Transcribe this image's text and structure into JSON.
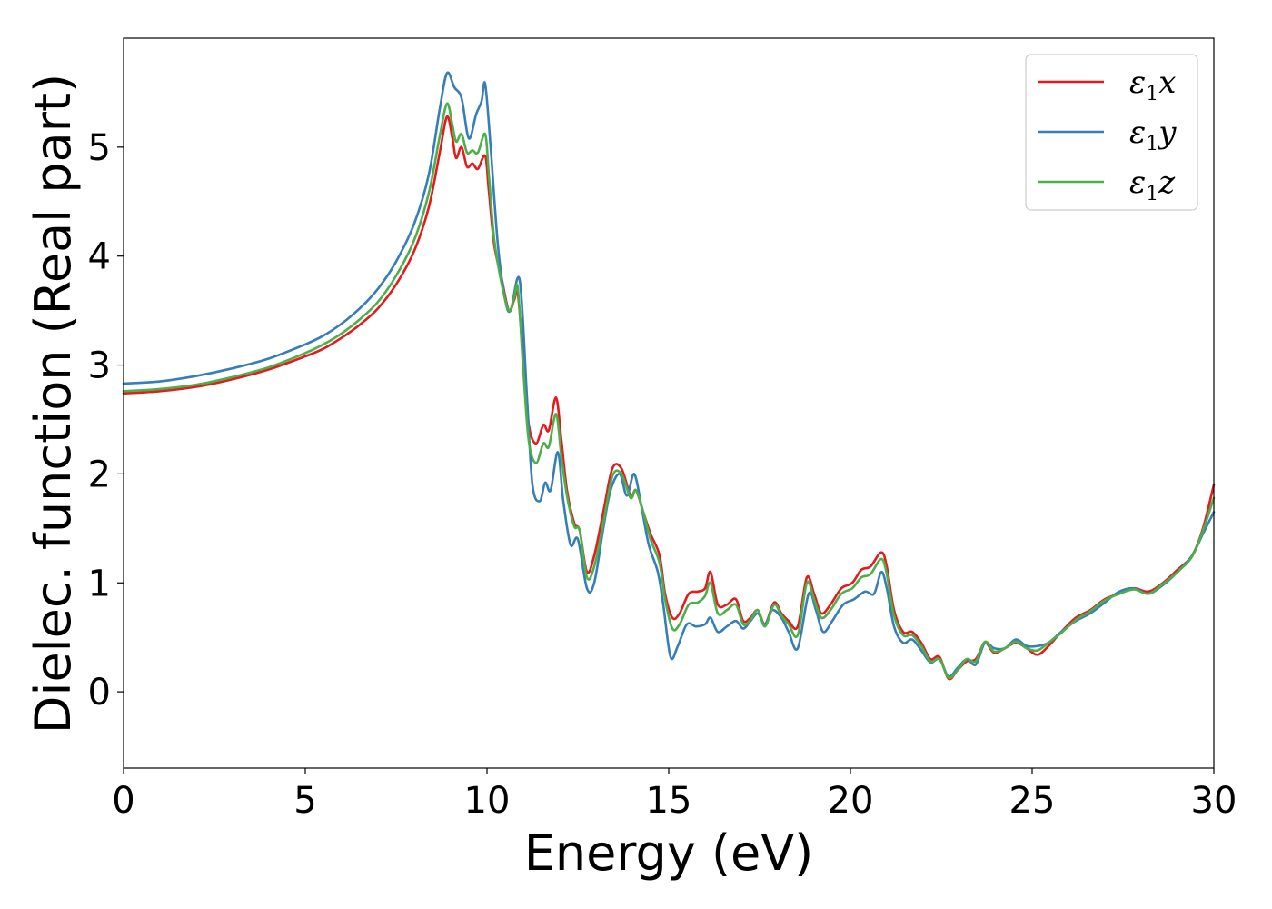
{
  "chart_data": {
    "type": "line",
    "xlabel": "Energy (eV)",
    "ylabel": "Dielec. function (Real part)",
    "xlim": [
      0,
      30
    ],
    "ylim": [
      -0.7,
      6.0
    ],
    "xticks": [
      0,
      5,
      10,
      15,
      20,
      25,
      30
    ],
    "xtick_labels": [
      "0",
      "5",
      "10",
      "15",
      "20",
      "25",
      "30"
    ],
    "yticks": [
      0,
      1,
      2,
      3,
      4,
      5
    ],
    "ytick_labels": [
      "0",
      "1",
      "2",
      "3",
      "4",
      "5"
    ],
    "grid": false,
    "legend_position": "top-right",
    "series": [
      {
        "name": "ε1x",
        "name_base": "ε",
        "name_sub": "1",
        "name_var": "x",
        "color": "#e41a1c",
        "points": [
          [
            0,
            2.74
          ],
          [
            1,
            2.76
          ],
          [
            2,
            2.8
          ],
          [
            3,
            2.87
          ],
          [
            4,
            2.96
          ],
          [
            5,
            3.08
          ],
          [
            5.5,
            3.15
          ],
          [
            6,
            3.25
          ],
          [
            6.5,
            3.37
          ],
          [
            7,
            3.52
          ],
          [
            7.5,
            3.74
          ],
          [
            8,
            4.05
          ],
          [
            8.4,
            4.45
          ],
          [
            8.7,
            4.95
          ],
          [
            8.9,
            5.28
          ],
          [
            9.05,
            5.08
          ],
          [
            9.15,
            4.9
          ],
          [
            9.3,
            5.0
          ],
          [
            9.45,
            4.82
          ],
          [
            9.6,
            4.85
          ],
          [
            9.75,
            4.8
          ],
          [
            9.95,
            4.92
          ],
          [
            10.05,
            4.6
          ],
          [
            10.2,
            4.1
          ],
          [
            10.4,
            3.8
          ],
          [
            10.6,
            3.5
          ],
          [
            10.75,
            3.6
          ],
          [
            10.85,
            3.65
          ],
          [
            11.0,
            3.05
          ],
          [
            11.15,
            2.45
          ],
          [
            11.35,
            2.28
          ],
          [
            11.55,
            2.45
          ],
          [
            11.7,
            2.4
          ],
          [
            11.9,
            2.7
          ],
          [
            12.05,
            2.3
          ],
          [
            12.2,
            1.85
          ],
          [
            12.4,
            1.55
          ],
          [
            12.55,
            1.48
          ],
          [
            12.75,
            1.1
          ],
          [
            12.95,
            1.25
          ],
          [
            13.2,
            1.65
          ],
          [
            13.45,
            2.05
          ],
          [
            13.7,
            2.05
          ],
          [
            13.95,
            1.8
          ],
          [
            14.1,
            1.85
          ],
          [
            14.3,
            1.65
          ],
          [
            14.5,
            1.45
          ],
          [
            14.75,
            1.25
          ],
          [
            14.9,
            0.9
          ],
          [
            15.1,
            0.68
          ],
          [
            15.3,
            0.72
          ],
          [
            15.55,
            0.9
          ],
          [
            15.8,
            0.92
          ],
          [
            16.0,
            0.95
          ],
          [
            16.15,
            1.1
          ],
          [
            16.35,
            0.8
          ],
          [
            16.6,
            0.8
          ],
          [
            16.85,
            0.85
          ],
          [
            17.05,
            0.65
          ],
          [
            17.25,
            0.68
          ],
          [
            17.45,
            0.75
          ],
          [
            17.65,
            0.62
          ],
          [
            17.9,
            0.82
          ],
          [
            18.1,
            0.72
          ],
          [
            18.3,
            0.65
          ],
          [
            18.55,
            0.6
          ],
          [
            18.8,
            1.05
          ],
          [
            19.0,
            0.9
          ],
          [
            19.2,
            0.72
          ],
          [
            19.45,
            0.8
          ],
          [
            19.75,
            0.95
          ],
          [
            20.05,
            1.0
          ],
          [
            20.3,
            1.12
          ],
          [
            20.55,
            1.15
          ],
          [
            20.85,
            1.28
          ],
          [
            21.0,
            1.15
          ],
          [
            21.2,
            0.75
          ],
          [
            21.45,
            0.55
          ],
          [
            21.7,
            0.55
          ],
          [
            21.95,
            0.45
          ],
          [
            22.2,
            0.3
          ],
          [
            22.45,
            0.32
          ],
          [
            22.7,
            0.12
          ],
          [
            22.95,
            0.2
          ],
          [
            23.2,
            0.28
          ],
          [
            23.45,
            0.3
          ],
          [
            23.7,
            0.45
          ],
          [
            23.95,
            0.36
          ],
          [
            24.25,
            0.4
          ],
          [
            24.55,
            0.45
          ],
          [
            24.85,
            0.4
          ],
          [
            25.15,
            0.34
          ],
          [
            25.45,
            0.42
          ],
          [
            25.8,
            0.55
          ],
          [
            26.2,
            0.68
          ],
          [
            26.6,
            0.75
          ],
          [
            27.0,
            0.85
          ],
          [
            27.4,
            0.9
          ],
          [
            27.8,
            0.95
          ],
          [
            28.2,
            0.92
          ],
          [
            28.6,
            1.0
          ],
          [
            29.0,
            1.12
          ],
          [
            29.4,
            1.25
          ],
          [
            29.7,
            1.5
          ],
          [
            30.0,
            1.9
          ]
        ]
      },
      {
        "name": "ε1y",
        "name_base": "ε",
        "name_sub": "1",
        "name_var": "y",
        "color": "#377eb8",
        "points": [
          [
            0,
            2.83
          ],
          [
            1,
            2.85
          ],
          [
            2,
            2.9
          ],
          [
            3,
            2.97
          ],
          [
            4,
            3.06
          ],
          [
            5,
            3.19
          ],
          [
            5.5,
            3.27
          ],
          [
            6,
            3.38
          ],
          [
            6.5,
            3.52
          ],
          [
            7,
            3.7
          ],
          [
            7.5,
            3.95
          ],
          [
            8,
            4.3
          ],
          [
            8.4,
            4.75
          ],
          [
            8.7,
            5.35
          ],
          [
            8.9,
            5.68
          ],
          [
            9.1,
            5.55
          ],
          [
            9.3,
            5.45
          ],
          [
            9.5,
            5.08
          ],
          [
            9.7,
            5.3
          ],
          [
            9.85,
            5.42
          ],
          [
            9.95,
            5.58
          ],
          [
            10.1,
            5.0
          ],
          [
            10.3,
            4.1
          ],
          [
            10.5,
            3.6
          ],
          [
            10.65,
            3.5
          ],
          [
            10.9,
            3.78
          ],
          [
            11.1,
            2.7
          ],
          [
            11.25,
            1.9
          ],
          [
            11.45,
            1.75
          ],
          [
            11.6,
            1.92
          ],
          [
            11.75,
            1.85
          ],
          [
            11.95,
            2.2
          ],
          [
            12.1,
            1.75
          ],
          [
            12.3,
            1.35
          ],
          [
            12.5,
            1.4
          ],
          [
            12.75,
            0.95
          ],
          [
            12.95,
            1.0
          ],
          [
            13.2,
            1.5
          ],
          [
            13.4,
            1.85
          ],
          [
            13.65,
            2.0
          ],
          [
            13.85,
            1.8
          ],
          [
            14.05,
            2.0
          ],
          [
            14.25,
            1.7
          ],
          [
            14.45,
            1.35
          ],
          [
            14.7,
            1.1
          ],
          [
            14.85,
            0.8
          ],
          [
            15.05,
            0.32
          ],
          [
            15.25,
            0.42
          ],
          [
            15.5,
            0.62
          ],
          [
            15.75,
            0.6
          ],
          [
            16.0,
            0.62
          ],
          [
            16.15,
            0.68
          ],
          [
            16.35,
            0.55
          ],
          [
            16.6,
            0.6
          ],
          [
            16.85,
            0.65
          ],
          [
            17.05,
            0.58
          ],
          [
            17.25,
            0.65
          ],
          [
            17.45,
            0.72
          ],
          [
            17.65,
            0.62
          ],
          [
            17.85,
            0.75
          ],
          [
            18.1,
            0.68
          ],
          [
            18.3,
            0.55
          ],
          [
            18.55,
            0.4
          ],
          [
            18.85,
            0.9
          ],
          [
            19.05,
            0.75
          ],
          [
            19.25,
            0.55
          ],
          [
            19.5,
            0.65
          ],
          [
            19.8,
            0.8
          ],
          [
            20.1,
            0.85
          ],
          [
            20.4,
            0.92
          ],
          [
            20.65,
            0.9
          ],
          [
            20.85,
            1.1
          ],
          [
            21.0,
            0.95
          ],
          [
            21.2,
            0.6
          ],
          [
            21.45,
            0.45
          ],
          [
            21.7,
            0.48
          ],
          [
            21.95,
            0.38
          ],
          [
            22.2,
            0.27
          ],
          [
            22.45,
            0.3
          ],
          [
            22.7,
            0.14
          ],
          [
            22.95,
            0.22
          ],
          [
            23.2,
            0.3
          ],
          [
            23.45,
            0.25
          ],
          [
            23.7,
            0.45
          ],
          [
            23.95,
            0.4
          ],
          [
            24.25,
            0.4
          ],
          [
            24.55,
            0.48
          ],
          [
            24.85,
            0.42
          ],
          [
            25.15,
            0.42
          ],
          [
            25.45,
            0.45
          ],
          [
            25.8,
            0.55
          ],
          [
            26.2,
            0.65
          ],
          [
            26.6,
            0.72
          ],
          [
            27.0,
            0.82
          ],
          [
            27.4,
            0.92
          ],
          [
            27.8,
            0.95
          ],
          [
            28.2,
            0.9
          ],
          [
            28.6,
            0.98
          ],
          [
            29.0,
            1.1
          ],
          [
            29.4,
            1.25
          ],
          [
            29.7,
            1.45
          ],
          [
            30.0,
            1.65
          ]
        ]
      },
      {
        "name": "ε1z",
        "name_base": "ε",
        "name_sub": "1",
        "name_var": "z",
        "color": "#4daf4a",
        "points": [
          [
            0,
            2.76
          ],
          [
            1,
            2.78
          ],
          [
            2,
            2.82
          ],
          [
            3,
            2.89
          ],
          [
            4,
            2.98
          ],
          [
            5,
            3.11
          ],
          [
            5.5,
            3.19
          ],
          [
            6,
            3.29
          ],
          [
            6.5,
            3.42
          ],
          [
            7,
            3.58
          ],
          [
            7.5,
            3.82
          ],
          [
            8,
            4.15
          ],
          [
            8.4,
            4.58
          ],
          [
            8.7,
            5.1
          ],
          [
            8.9,
            5.4
          ],
          [
            9.05,
            5.2
          ],
          [
            9.15,
            5.05
          ],
          [
            9.3,
            5.12
          ],
          [
            9.45,
            4.95
          ],
          [
            9.6,
            4.97
          ],
          [
            9.75,
            4.95
          ],
          [
            9.95,
            5.12
          ],
          [
            10.05,
            4.75
          ],
          [
            10.2,
            4.15
          ],
          [
            10.4,
            3.75
          ],
          [
            10.6,
            3.5
          ],
          [
            10.75,
            3.62
          ],
          [
            10.85,
            3.7
          ],
          [
            11.0,
            2.95
          ],
          [
            11.15,
            2.3
          ],
          [
            11.35,
            2.1
          ],
          [
            11.55,
            2.28
          ],
          [
            11.7,
            2.25
          ],
          [
            11.9,
            2.55
          ],
          [
            12.05,
            2.15
          ],
          [
            12.2,
            1.8
          ],
          [
            12.4,
            1.52
          ],
          [
            12.55,
            1.48
          ],
          [
            12.75,
            1.05
          ],
          [
            12.95,
            1.15
          ],
          [
            13.2,
            1.55
          ],
          [
            13.45,
            1.98
          ],
          [
            13.7,
            2.0
          ],
          [
            13.95,
            1.78
          ],
          [
            14.1,
            1.85
          ],
          [
            14.3,
            1.65
          ],
          [
            14.5,
            1.4
          ],
          [
            14.75,
            1.18
          ],
          [
            14.9,
            0.85
          ],
          [
            15.1,
            0.58
          ],
          [
            15.3,
            0.62
          ],
          [
            15.55,
            0.8
          ],
          [
            15.8,
            0.82
          ],
          [
            16.0,
            0.88
          ],
          [
            16.15,
            1.0
          ],
          [
            16.35,
            0.72
          ],
          [
            16.6,
            0.75
          ],
          [
            16.85,
            0.8
          ],
          [
            17.05,
            0.62
          ],
          [
            17.25,
            0.66
          ],
          [
            17.45,
            0.75
          ],
          [
            17.65,
            0.6
          ],
          [
            17.9,
            0.8
          ],
          [
            18.1,
            0.7
          ],
          [
            18.3,
            0.62
          ],
          [
            18.55,
            0.52
          ],
          [
            18.8,
            1.0
          ],
          [
            19.0,
            0.85
          ],
          [
            19.2,
            0.68
          ],
          [
            19.45,
            0.75
          ],
          [
            19.75,
            0.9
          ],
          [
            20.05,
            0.95
          ],
          [
            20.3,
            1.05
          ],
          [
            20.55,
            1.08
          ],
          [
            20.85,
            1.22
          ],
          [
            21.0,
            1.08
          ],
          [
            21.2,
            0.7
          ],
          [
            21.45,
            0.52
          ],
          [
            21.7,
            0.52
          ],
          [
            21.95,
            0.42
          ],
          [
            22.2,
            0.28
          ],
          [
            22.45,
            0.3
          ],
          [
            22.7,
            0.13
          ],
          [
            22.95,
            0.2
          ],
          [
            23.2,
            0.3
          ],
          [
            23.45,
            0.28
          ],
          [
            23.7,
            0.46
          ],
          [
            23.95,
            0.37
          ],
          [
            24.25,
            0.4
          ],
          [
            24.55,
            0.46
          ],
          [
            24.85,
            0.4
          ],
          [
            25.15,
            0.38
          ],
          [
            25.45,
            0.45
          ],
          [
            25.8,
            0.54
          ],
          [
            26.2,
            0.66
          ],
          [
            26.6,
            0.74
          ],
          [
            27.0,
            0.84
          ],
          [
            27.4,
            0.9
          ],
          [
            27.8,
            0.94
          ],
          [
            28.2,
            0.9
          ],
          [
            28.6,
            0.99
          ],
          [
            29.0,
            1.1
          ],
          [
            29.4,
            1.24
          ],
          [
            29.7,
            1.48
          ],
          [
            30.0,
            1.78
          ]
        ]
      }
    ]
  }
}
